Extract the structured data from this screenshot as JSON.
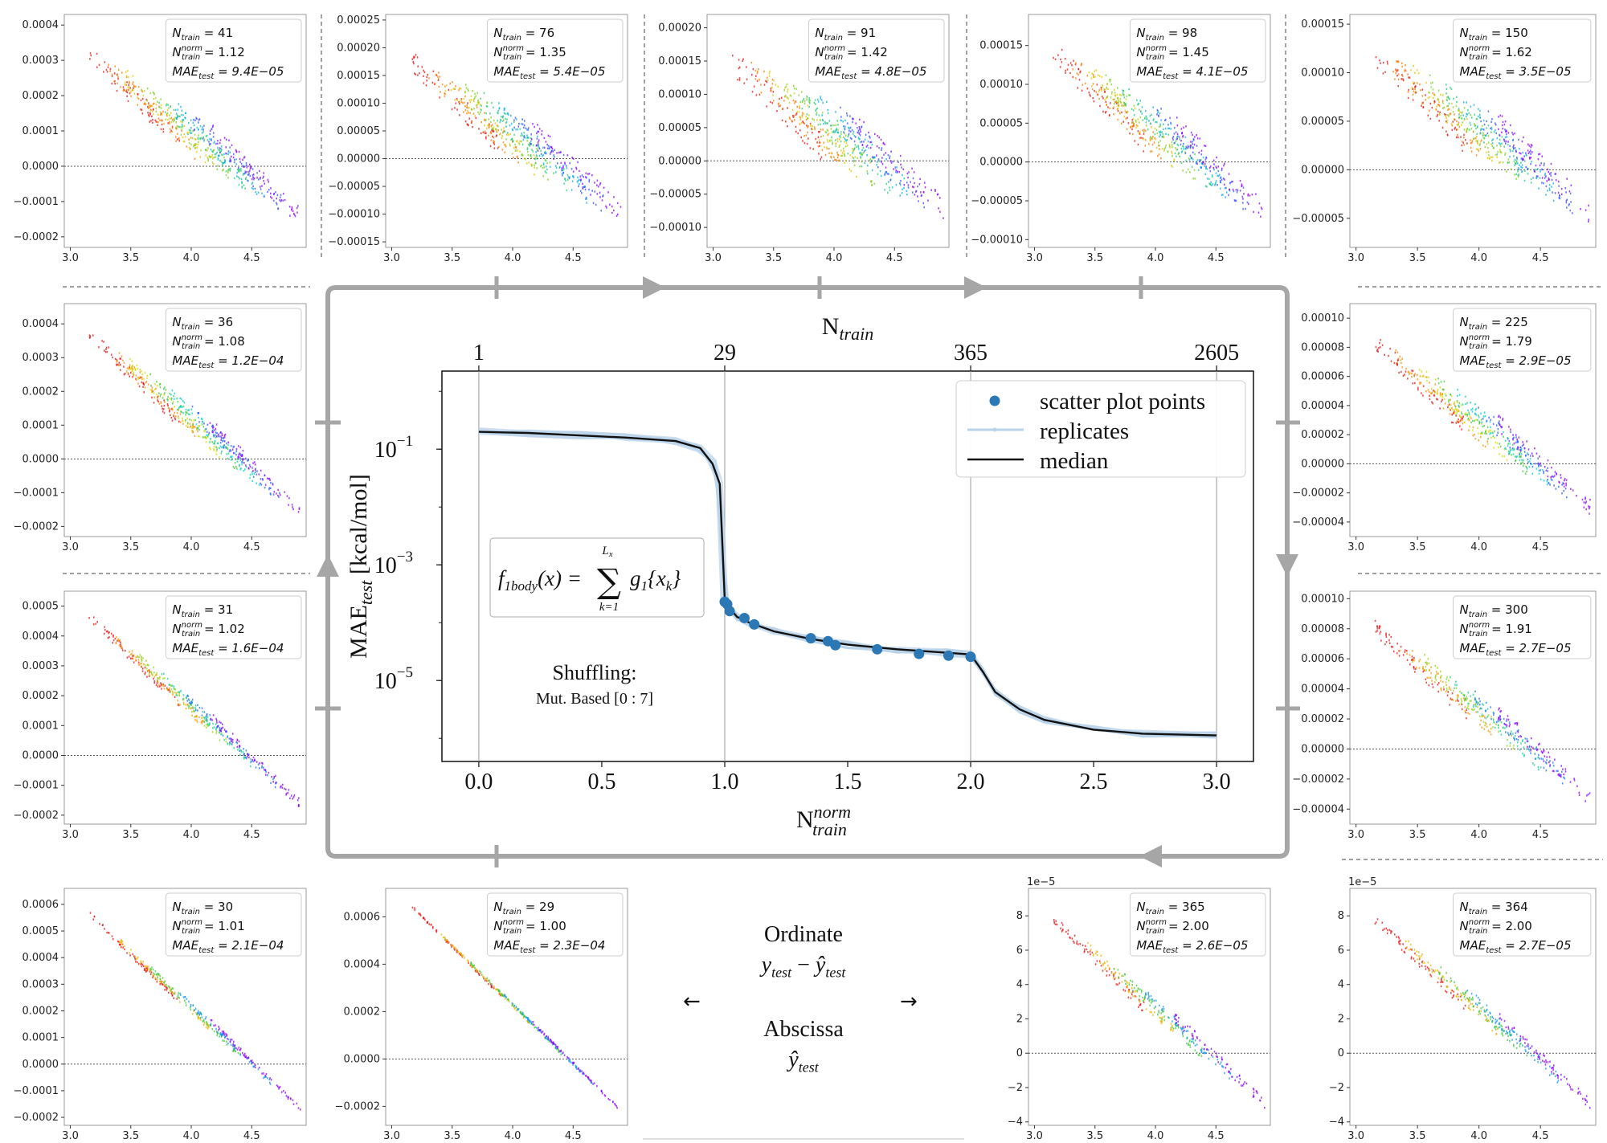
{
  "panels": [
    {
      "id": "p41",
      "n_train": "41",
      "n_norm": "1.12",
      "mae": "9.4E−05",
      "y_ticks": [
        "0.0004",
        "0.0003",
        "0.0002",
        "0.0001",
        "0.0000",
        "−0.0001",
        "−0.0002"
      ],
      "y_range": [
        -0.00023,
        0.00043
      ],
      "y_zero": 0,
      "y_top": 0.00039,
      "x_ticks": [
        "3.0",
        "3.5",
        "4.0",
        "4.5"
      ],
      "spread": 5.5e-05,
      "band": 8,
      "exp": ""
    },
    {
      "id": "p76",
      "n_train": "76",
      "n_norm": "1.35",
      "mae": "5.4E−05",
      "y_ticks": [
        "0.00025",
        "0.00020",
        "0.00015",
        "0.00010",
        "0.00005",
        "0.00000",
        "−0.00005",
        "−0.00010",
        "−0.00015"
      ],
      "y_range": [
        -0.00016,
        0.00026
      ],
      "y_zero": 0,
      "y_top": 0.00023,
      "x_ticks": [
        "3.0",
        "3.5",
        "4.0",
        "4.5"
      ],
      "spread": 4e-05,
      "band": 8,
      "exp": ""
    },
    {
      "id": "p91",
      "n_train": "91",
      "n_norm": "1.42",
      "mae": "4.8E−05",
      "y_ticks": [
        "0.00020",
        "0.00015",
        "0.00010",
        "0.00005",
        "0.00000",
        "−0.00005",
        "−0.00010"
      ],
      "y_range": [
        -0.00013,
        0.00022
      ],
      "y_zero": 0,
      "y_top": 0.0002,
      "x_ticks": [
        "3.0",
        "3.5",
        "4.0",
        "4.5"
      ],
      "spread": 4e-05,
      "band": 8,
      "exp": ""
    },
    {
      "id": "p98",
      "n_train": "98",
      "n_norm": "1.45",
      "mae": "4.1E−05",
      "y_ticks": [
        "0.00015",
        "0.00010",
        "0.00005",
        "0.00000",
        "−0.00005",
        "−0.00010"
      ],
      "y_range": [
        -0.00011,
        0.00019
      ],
      "y_zero": 0,
      "y_top": 0.00018,
      "x_ticks": [
        "3.0",
        "3.5",
        "4.0",
        "4.5"
      ],
      "spread": 3e-05,
      "band": 8,
      "exp": ""
    },
    {
      "id": "p150",
      "n_train": "150",
      "n_norm": "1.62",
      "mae": "3.5E−05",
      "y_ticks": [
        "0.00015",
        "0.00010",
        "0.00005",
        "0.00000",
        "−0.00005"
      ],
      "y_range": [
        -8e-05,
        0.00016
      ],
      "y_zero": 0,
      "y_top": 0.00015,
      "x_ticks": [
        "3.0",
        "3.5",
        "4.0",
        "4.5"
      ],
      "spread": 2.5e-05,
      "band": 8,
      "exp": ""
    },
    {
      "id": "p36",
      "n_train": "36",
      "n_norm": "1.08",
      "mae": "1.2E−04",
      "y_ticks": [
        "0.0004",
        "0.0003",
        "0.0002",
        "0.0001",
        "0.0000",
        "−0.0001",
        "−0.0002"
      ],
      "y_range": [
        -0.00023,
        0.00046
      ],
      "y_zero": 0,
      "y_top": 0.00043,
      "x_ticks": [
        "3.0",
        "3.5",
        "4.0",
        "4.5"
      ],
      "spread": 4e-05,
      "band": 7,
      "exp": ""
    },
    {
      "id": "p225",
      "n_train": "225",
      "n_norm": "1.79",
      "mae": "2.9E−05",
      "y_ticks": [
        "0.00010",
        "0.00008",
        "0.00006",
        "0.00004",
        "0.00002",
        "0.00000",
        "−0.00002",
        "−0.00004"
      ],
      "y_range": [
        -5e-05,
        0.00011
      ],
      "y_zero": 0,
      "y_top": 0.0001,
      "x_ticks": [
        "3.0",
        "3.5",
        "4.0",
        "4.5"
      ],
      "spread": 1.2e-05,
      "band": 7,
      "exp": ""
    },
    {
      "id": "p31",
      "n_train": "31",
      "n_norm": "1.02",
      "mae": "1.6E−04",
      "y_ticks": [
        "0.0005",
        "0.0004",
        "0.0003",
        "0.0002",
        "0.0001",
        "0.0000",
        "−0.0001",
        "−0.0002"
      ],
      "y_range": [
        -0.00023,
        0.00055
      ],
      "y_zero": 0,
      "y_top": 0.00052,
      "x_ticks": [
        "3.0",
        "3.5",
        "4.0",
        "4.5"
      ],
      "spread": 3e-05,
      "band": 6,
      "exp": ""
    },
    {
      "id": "p300",
      "n_train": "300",
      "n_norm": "1.91",
      "mae": "2.7E−05",
      "y_ticks": [
        "0.00010",
        "0.00008",
        "0.00006",
        "0.00004",
        "0.00002",
        "0.00000",
        "−0.00002",
        "−0.00004"
      ],
      "y_range": [
        -5e-05,
        0.000105
      ],
      "y_zero": 0,
      "y_top": 9.5e-05,
      "x_ticks": [
        "3.0",
        "3.5",
        "4.0",
        "4.5"
      ],
      "spread": 1e-05,
      "band": 6,
      "exp": ""
    },
    {
      "id": "p30",
      "n_train": "30",
      "n_norm": "1.01",
      "mae": "2.1E−04",
      "y_ticks": [
        "0.0006",
        "0.0005",
        "0.0004",
        "0.0003",
        "0.0002",
        "0.0001",
        "0.0000",
        "−0.0001",
        "−0.0002"
      ],
      "y_range": [
        -0.00023,
        0.00066
      ],
      "y_zero": 0,
      "y_top": 0.00061,
      "x_ticks": [
        "3.0",
        "3.5",
        "4.0",
        "4.5"
      ],
      "spread": 2e-05,
      "band": 5,
      "exp": ""
    },
    {
      "id": "p29",
      "n_train": "29",
      "n_norm": "1.00",
      "mae": "2.3E−04",
      "y_ticks": [
        "0.0006",
        "0.0004",
        "0.0002",
        "0.0000",
        "−0.0002"
      ],
      "y_range": [
        -0.00028,
        0.00072
      ],
      "y_zero": 0,
      "y_top": 0.00069,
      "x_ticks": [
        "3.0",
        "3.5",
        "4.0",
        "4.5"
      ],
      "spread": 1e-05,
      "band": 5,
      "exp": ""
    },
    {
      "id": "p365",
      "n_train": "365",
      "n_norm": "2.00",
      "mae": "2.6E−05",
      "y_ticks": [
        "8",
        "6",
        "4",
        "2",
        "0",
        "−2",
        "−4"
      ],
      "y_range": [
        -4.2,
        9.6
      ],
      "y_zero": 0,
      "y_top": 8.8,
      "x_ticks": [
        "3.0",
        "3.5",
        "4.0",
        "4.5"
      ],
      "spread": 0.6,
      "band": 5,
      "exp": "1e−5"
    },
    {
      "id": "p364",
      "n_train": "364",
      "n_norm": "2.00",
      "mae": "2.7E−05",
      "y_ticks": [
        "8",
        "6",
        "4",
        "2",
        "0",
        "−2",
        "−4"
      ],
      "y_range": [
        -4.2,
        9.6
      ],
      "y_zero": 0,
      "y_top": 8.8,
      "x_ticks": [
        "3.0",
        "3.5",
        "4.0",
        "4.5"
      ],
      "spread": 0.6,
      "band": 5,
      "exp": "1e−5"
    }
  ],
  "center": {
    "top_axis_title": "N",
    "top_axis_title_sub": "train",
    "top_ticks": [
      "1",
      "29",
      "365",
      "2605"
    ],
    "xlabel": "N",
    "xlabel_sup": "norm",
    "xlabel_sub": "train",
    "ylabel_main": "MAE",
    "ylabel_sub": "test",
    "ylabel_unit": "[kcal/mol]",
    "x_ticks": [
      "0.0",
      "0.5",
      "1.0",
      "1.5",
      "2.0",
      "2.5",
      "3.0"
    ],
    "y_ticks": [
      {
        "label": "10",
        "exp": "−1"
      },
      {
        "label": "10",
        "exp": "−3"
      },
      {
        "label": "10",
        "exp": "−5"
      }
    ],
    "legend": [
      "scatter plot points",
      "replicates",
      "median"
    ],
    "formula_lhs": "f",
    "formula_lhs_sub": "1body",
    "formula_arg": "(x) =",
    "formula_sum_top": "L",
    "formula_sum_top_sub": "x",
    "formula_sum_bottom": "k=1",
    "formula_rhs": "g",
    "formula_rhs_sub": "1",
    "formula_rhs_arg": "{x",
    "formula_rhs_arg_sub": "k",
    "formula_rhs_close": "}",
    "shuffling_title": "Shuffling:",
    "shuffling_sub": "Mut. Based [0 : 7]"
  },
  "axes_note": {
    "ordinate_title": "Ordinate",
    "ordinate_expr": "y",
    "ordinate_expr_sub": "test",
    "ordinate_minus": " − ",
    "ordinate_hat": "ŷ",
    "abscissa_title": "Abscissa",
    "abscissa_hat": "ŷ",
    "abscissa_sub": "test",
    "arrow_left": "←",
    "arrow_right": "→"
  },
  "label_parts": {
    "n": "N",
    "n_sub": "train",
    "norm_sup": "norm",
    "mae": "MAE",
    "mae_sub": "test",
    "eq": " = "
  },
  "chart_data": {
    "type": "line",
    "title": "",
    "xlabel": "N_train^norm",
    "ylabel": "MAE_test [kcal/mol]",
    "x2label": "N_train",
    "x2_ticks": {
      "0.0": "1",
      "1.0": "29",
      "2.0": "365",
      "3.0": "2605"
    },
    "xlim": [
      -0.15,
      3.15
    ],
    "ylim_log10": [
      -6.4,
      0.35
    ],
    "yscale": "log",
    "series": [
      {
        "name": "median",
        "x": [
          0.0,
          0.2,
          0.4,
          0.6,
          0.8,
          0.9,
          0.95,
          0.98,
          1.0,
          1.02,
          1.05,
          1.1,
          1.2,
          1.35,
          1.5,
          1.7,
          1.9,
          2.0,
          2.05,
          2.1,
          2.2,
          2.3,
          2.5,
          2.7,
          3.0
        ],
        "log10y": [
          -0.7,
          -0.72,
          -0.76,
          -0.8,
          -0.86,
          -0.98,
          -1.25,
          -1.6,
          -3.6,
          -3.75,
          -3.9,
          -4.0,
          -4.15,
          -4.28,
          -4.38,
          -4.46,
          -4.52,
          -4.55,
          -4.85,
          -5.2,
          -5.5,
          -5.68,
          -5.85,
          -5.92,
          -5.95
        ]
      },
      {
        "name": "scatter plot points",
        "x": [
          1.0,
          1.01,
          1.02,
          1.08,
          1.12,
          1.35,
          1.42,
          1.45,
          1.62,
          1.79,
          1.91,
          2.0
        ],
        "log10y": [
          -3.64,
          -3.68,
          -3.8,
          -3.92,
          -4.03,
          -4.27,
          -4.32,
          -4.39,
          -4.46,
          -4.54,
          -4.57,
          -4.59
        ]
      }
    ]
  }
}
